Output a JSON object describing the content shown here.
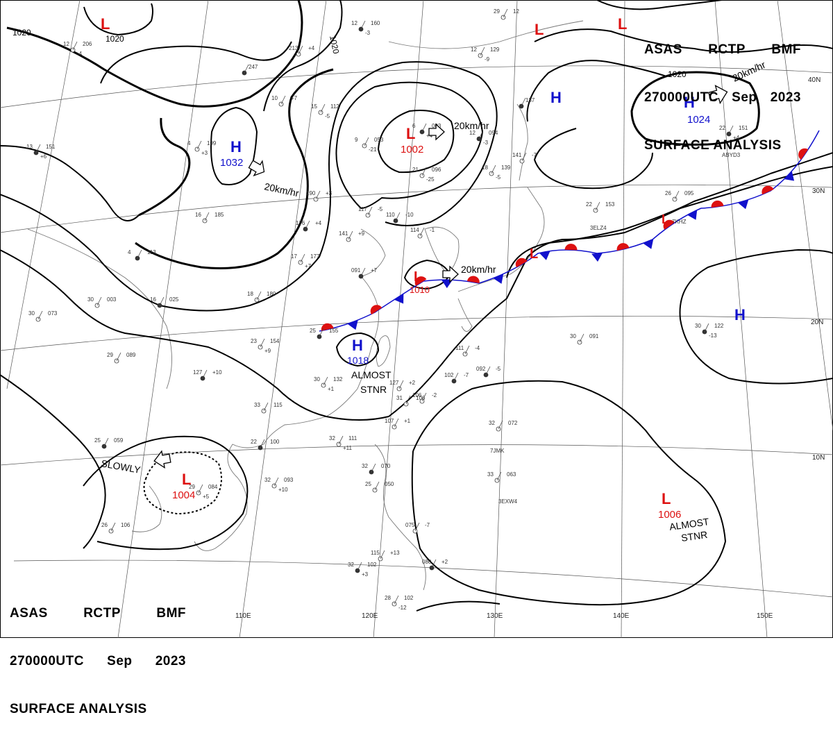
{
  "header": {
    "line1": [
      "ASAS",
      "RCTP",
      "BMF"
    ],
    "line2": [
      "270000UTC",
      "Sep",
      "2023"
    ],
    "line3": "SURFACE ANALYSIS"
  },
  "colors": {
    "high": "#1111cc",
    "low": "#dd1111",
    "isobar": "#000000",
    "grid": "#555555",
    "coast": "#777777",
    "warm_front": "#dd1111",
    "cold_front": "#1111cc"
  },
  "latitude_labels": [
    "40N",
    "30N",
    "20N",
    "10N"
  ],
  "longitude_labels": [
    "110E",
    "120E",
    "130E",
    "140E",
    "150E"
  ],
  "isobar_labels": [
    "1020",
    "1020",
    "1020",
    "1020"
  ],
  "pressure_systems": [
    {
      "type": "H",
      "pressure": "1032",
      "name": "high-mongolia"
    },
    {
      "type": "H",
      "pressure": "1024",
      "name": "high-northeast-pacific"
    },
    {
      "type": "H",
      "pressure": "",
      "name": "high-north-pacific"
    },
    {
      "type": "H",
      "pressure": "",
      "name": "high-east-pacific"
    },
    {
      "type": "H",
      "pressure": "1018",
      "name": "high-taiwan-strait"
    },
    {
      "type": "L",
      "pressure": "",
      "name": "low-siberia"
    },
    {
      "type": "L",
      "pressure": "",
      "name": "low-okhotsk-1"
    },
    {
      "type": "L",
      "pressure": "",
      "name": "low-okhotsk-2"
    },
    {
      "type": "L",
      "pressure": "1002",
      "name": "low-manchuria"
    },
    {
      "type": "L",
      "pressure": "1010",
      "name": "low-east-china-sea"
    },
    {
      "type": "L",
      "pressure": "",
      "name": "low-japan"
    },
    {
      "type": "L",
      "pressure": "",
      "name": "low-kuroshio"
    },
    {
      "type": "L",
      "pressure": "1004",
      "name": "low-south-china-sea"
    },
    {
      "type": "L",
      "pressure": "1006",
      "name": "low-west-pacific"
    }
  ],
  "motions": [
    {
      "label": "20km/hr",
      "name": "motion-mongolia-high"
    },
    {
      "label": "20km/hr",
      "name": "motion-manchuria-low"
    },
    {
      "label": "20km/hr",
      "name": "motion-ecs-low"
    },
    {
      "label": "20km/hr",
      "name": "motion-ne-high"
    },
    {
      "label": "SLOWLY",
      "name": "motion-scs-low"
    }
  ],
  "annotations": [
    {
      "lines": [
        "ALMOST",
        "STNR"
      ],
      "name": "annotation-taiwan-high"
    },
    {
      "lines": [
        "ALMOST",
        "STNR"
      ],
      "name": "annotation-pacific-low"
    }
  ],
  "station_labels": [
    "ABYD3",
    "3ELZ4",
    "7KHZ",
    "7JMK",
    "3EXW4"
  ],
  "station_obs": [
    [
      "12",
      "160",
      "-3"
    ],
    [
      "12",
      "206",
      "-4"
    ],
    [
      "213",
      "+4"
    ],
    [
      "247"
    ],
    [
      "10",
      "+7"
    ],
    [
      "15",
      "112",
      "-5"
    ],
    [
      "6",
      "003",
      "+4"
    ],
    [
      "9",
      "053",
      "-21"
    ],
    [
      "12",
      "129",
      "-9"
    ],
    [
      "12",
      "094",
      "-3"
    ],
    [
      "21",
      "096",
      "-25"
    ],
    [
      "18",
      "139",
      "-5"
    ],
    [
      "13",
      "151",
      "+6"
    ],
    [
      "4",
      "199",
      "+3"
    ],
    [
      "190",
      "+3"
    ],
    [
      "176",
      "+4"
    ],
    [
      "141",
      "+9"
    ],
    [
      "117",
      "-5"
    ],
    [
      "110",
      "-10"
    ],
    [
      "114",
      "-1"
    ],
    [
      "16",
      "185"
    ],
    [
      "4",
      "113"
    ],
    [
      "17",
      "177",
      "+7"
    ],
    [
      "18",
      "180"
    ],
    [
      "16",
      "025"
    ],
    [
      "30",
      "073"
    ],
    [
      "30",
      "003"
    ],
    [
      "25",
      "155"
    ],
    [
      "23",
      "154",
      "+9"
    ],
    [
      "29",
      "089"
    ],
    [
      "127",
      "+10"
    ],
    [
      "30",
      "132",
      "+1"
    ],
    [
      "31",
      "106"
    ],
    [
      "22",
      "100"
    ],
    [
      "32",
      "111",
      "+11"
    ],
    [
      "32",
      "093",
      "+10"
    ],
    [
      "25",
      "059"
    ],
    [
      "29",
      "084",
      "+5"
    ],
    [
      "26",
      "106"
    ],
    [
      "32",
      "070"
    ],
    [
      "25",
      "050"
    ],
    [
      "075",
      "-7"
    ],
    [
      "32",
      "102",
      "+3"
    ],
    [
      "28",
      "102",
      "-12"
    ],
    [
      "115",
      "+13"
    ],
    [
      "080",
      "+2"
    ],
    [
      "32",
      "072"
    ],
    [
      "33",
      "063"
    ],
    [
      "30",
      "122",
      "-13"
    ],
    [
      "30",
      "091"
    ],
    [
      "22",
      "153"
    ],
    [
      "22",
      "151",
      "+4"
    ],
    [
      "26",
      "095"
    ],
    [
      "141",
      "-7"
    ],
    [
      "137"
    ],
    [
      "29",
      "12"
    ],
    [
      "111",
      "-4"
    ],
    [
      "102",
      "-7"
    ],
    [
      "106",
      "-2"
    ],
    [
      "107",
      "+1"
    ],
    [
      "092",
      "-5"
    ],
    [
      "127",
      "+2"
    ],
    [
      "33",
      "115"
    ],
    [
      "091",
      "+7"
    ]
  ]
}
